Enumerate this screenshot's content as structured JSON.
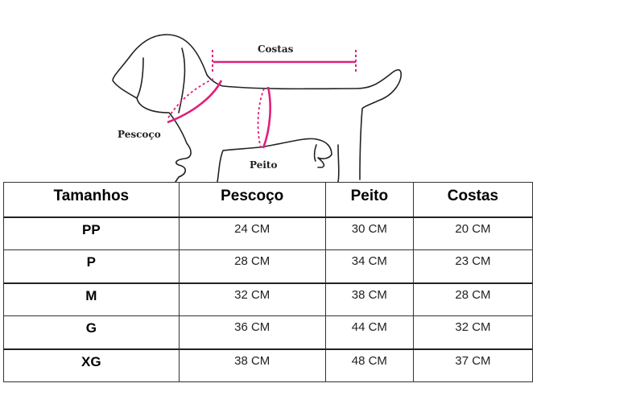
{
  "illustration": {
    "labels": {
      "back": "Costas",
      "neck": "Pescoço",
      "chest": "Peito"
    },
    "accent_color": "#e0207a"
  },
  "table": {
    "headers": [
      "Tamanhos",
      "Pescoço",
      "Peito",
      "Costas"
    ],
    "rows": [
      [
        "PP",
        "24 CM",
        "30 CM",
        "20 CM"
      ],
      [
        "P",
        "28 CM",
        "34 CM",
        "23 CM"
      ],
      [
        "M",
        "32 CM",
        "38 CM",
        "28 CM"
      ],
      [
        "G",
        "36 CM",
        "44 CM",
        "32 CM"
      ],
      [
        "XG",
        "38 CM",
        "48 CM",
        "37 CM"
      ]
    ]
  }
}
